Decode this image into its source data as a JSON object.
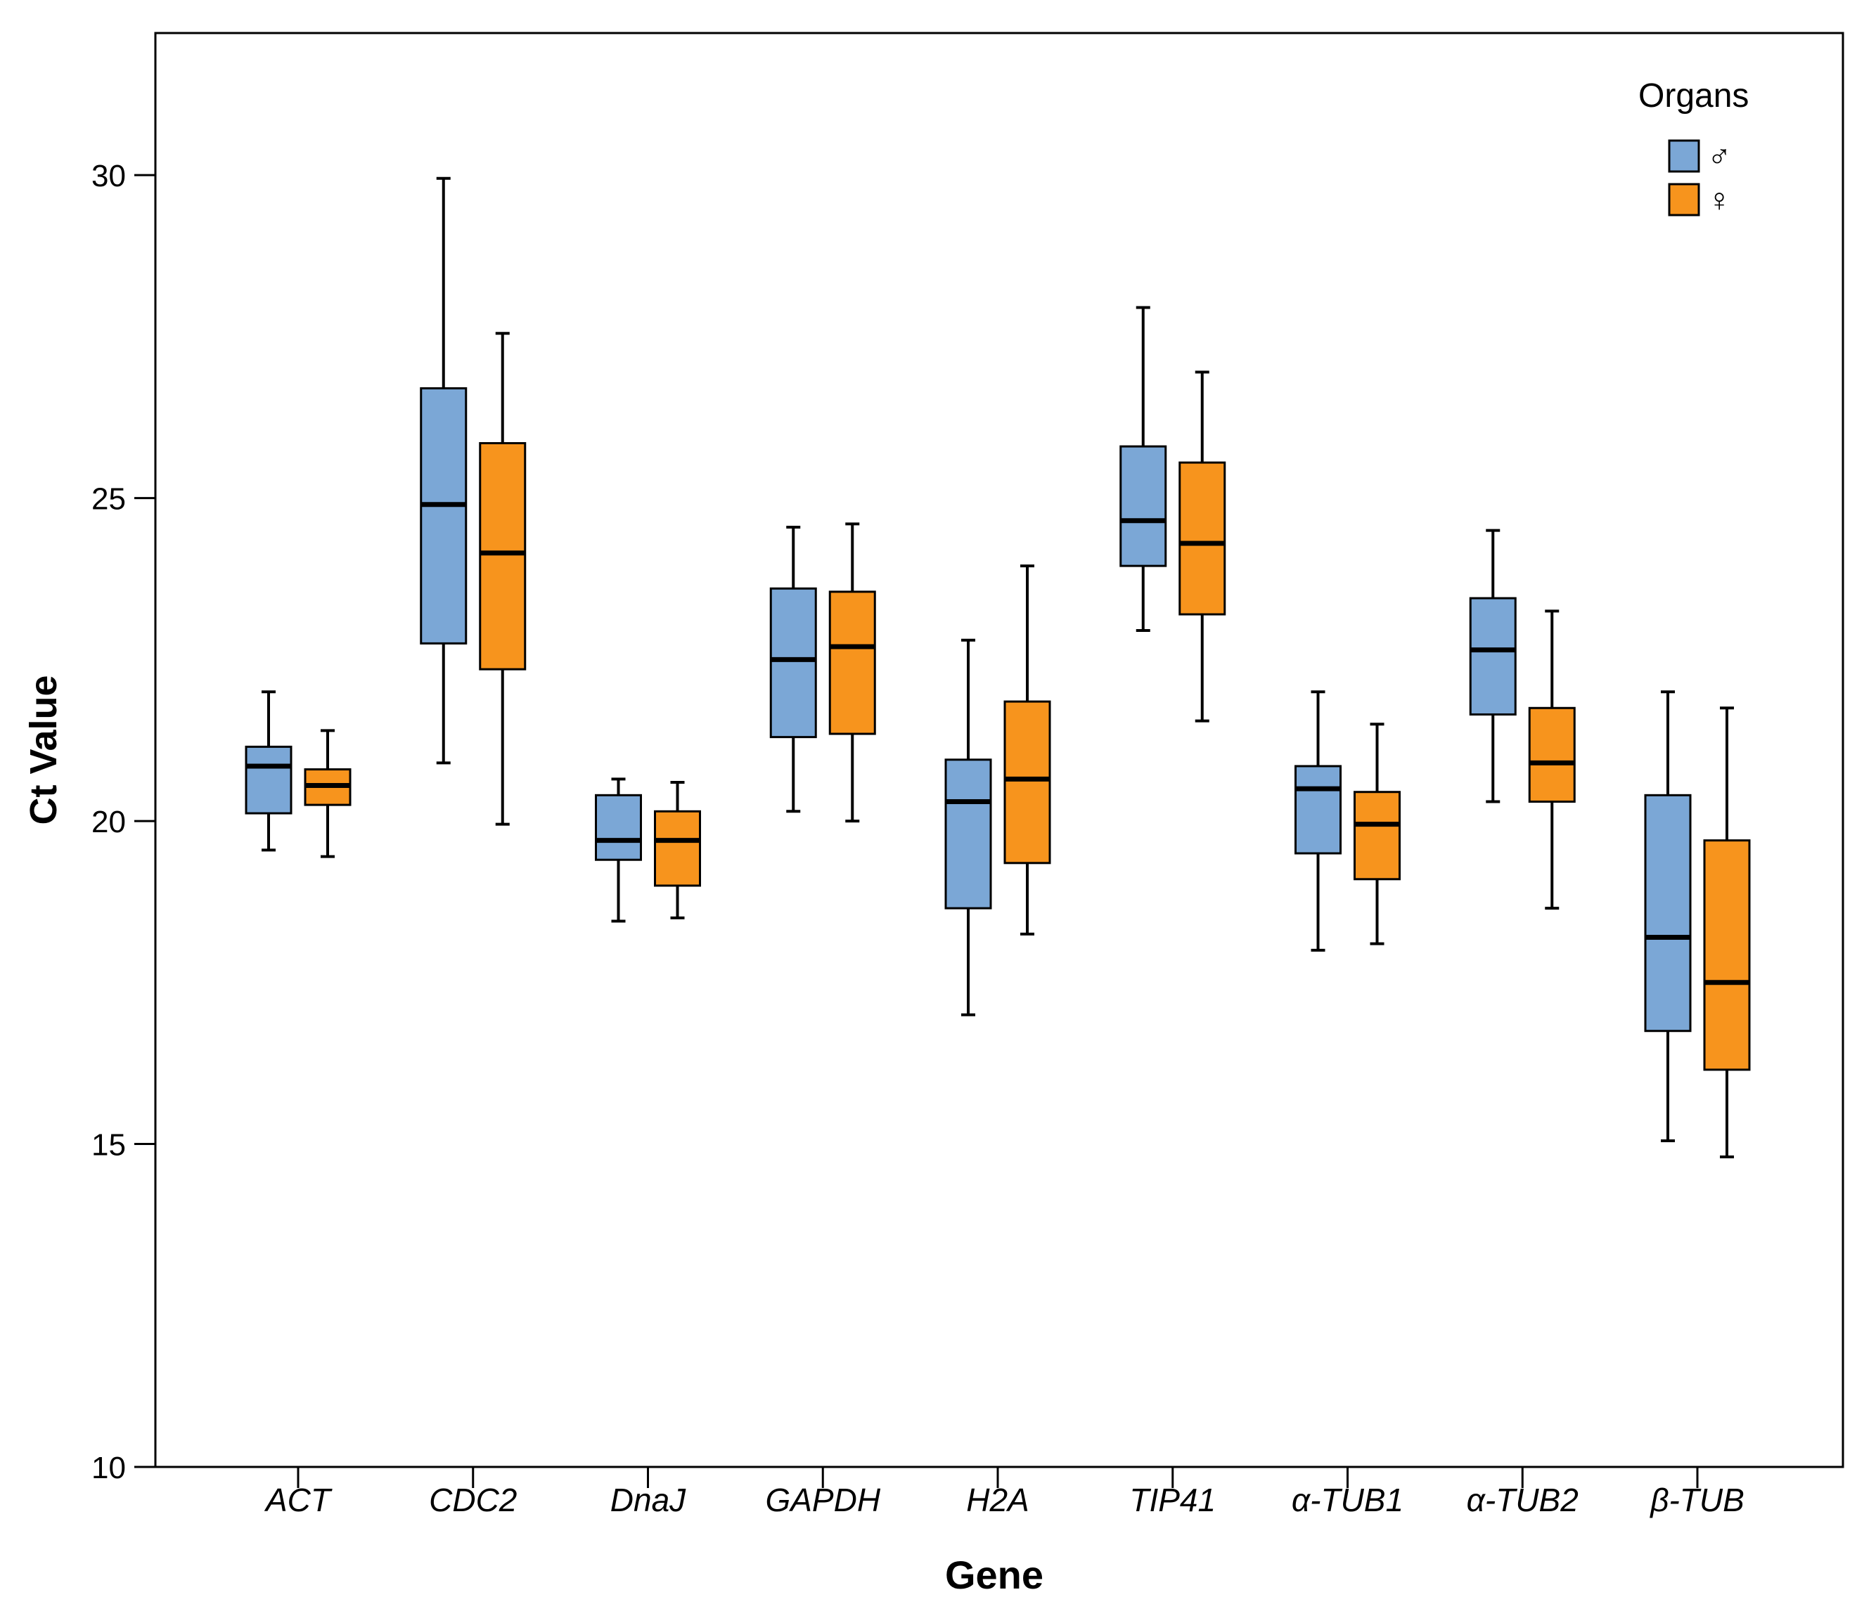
{
  "chart_data": {
    "type": "box",
    "xlabel": "Gene",
    "ylabel": "Ct Value",
    "ylim": [
      10,
      32.2
    ],
    "yticks": [
      "10",
      "15",
      "20",
      "25",
      "30"
    ],
    "ytick_values": [
      10,
      15,
      20,
      25,
      30
    ],
    "categories": [
      "ACT",
      "CDC2",
      "DnaJ",
      "GAPDH",
      "H2A",
      "TIP41",
      "α-TUB1",
      "α-TUB2",
      "β-TUB"
    ],
    "legend": {
      "title": "Organs",
      "placement": "top-right"
    },
    "grid": false,
    "series": [
      {
        "name": "♂",
        "color": "#7ba7d6",
        "boxes": [
          {
            "min": 19.55,
            "q1": 20.12,
            "median": 20.85,
            "q3": 21.15,
            "max": 22.0
          },
          {
            "min": 20.9,
            "q1": 22.75,
            "median": 24.9,
            "q3": 26.7,
            "max": 29.95
          },
          {
            "min": 18.45,
            "q1": 19.4,
            "median": 19.7,
            "q3": 20.4,
            "max": 20.65
          },
          {
            "min": 20.15,
            "q1": 21.3,
            "median": 22.5,
            "q3": 23.6,
            "max": 24.55
          },
          {
            "min": 17.0,
            "q1": 18.65,
            "median": 20.3,
            "q3": 20.95,
            "max": 22.8
          },
          {
            "min": 22.95,
            "q1": 23.95,
            "median": 24.65,
            "q3": 25.8,
            "max": 27.95
          },
          {
            "min": 18.0,
            "q1": 19.5,
            "median": 20.5,
            "q3": 20.85,
            "max": 22.0
          },
          {
            "min": 20.3,
            "q1": 21.65,
            "median": 22.65,
            "q3": 23.45,
            "max": 24.5
          },
          {
            "min": 15.05,
            "q1": 16.75,
            "median": 18.2,
            "q3": 20.4,
            "max": 22.0
          }
        ]
      },
      {
        "name": "♀",
        "color": "#f7941d",
        "boxes": [
          {
            "min": 19.45,
            "q1": 20.25,
            "median": 20.55,
            "q3": 20.8,
            "max": 21.4
          },
          {
            "min": 19.95,
            "q1": 22.35,
            "median": 24.15,
            "q3": 25.85,
            "max": 27.55
          },
          {
            "min": 18.5,
            "q1": 19.0,
            "median": 19.7,
            "q3": 20.15,
            "max": 20.6
          },
          {
            "min": 20.0,
            "q1": 21.35,
            "median": 22.7,
            "q3": 23.55,
            "max": 24.6
          },
          {
            "min": 18.25,
            "q1": 19.35,
            "median": 20.65,
            "q3": 21.85,
            "max": 23.95
          },
          {
            "min": 21.55,
            "q1": 23.2,
            "median": 24.3,
            "q3": 25.55,
            "max": 26.95
          },
          {
            "min": 18.1,
            "q1": 19.1,
            "median": 19.95,
            "q3": 20.45,
            "max": 21.5
          },
          {
            "min": 18.65,
            "q1": 20.3,
            "median": 20.9,
            "q3": 21.75,
            "max": 23.25
          },
          {
            "min": 14.8,
            "q1": 16.15,
            "median": 17.5,
            "q3": 19.7,
            "max": 21.75
          }
        ]
      }
    ]
  }
}
